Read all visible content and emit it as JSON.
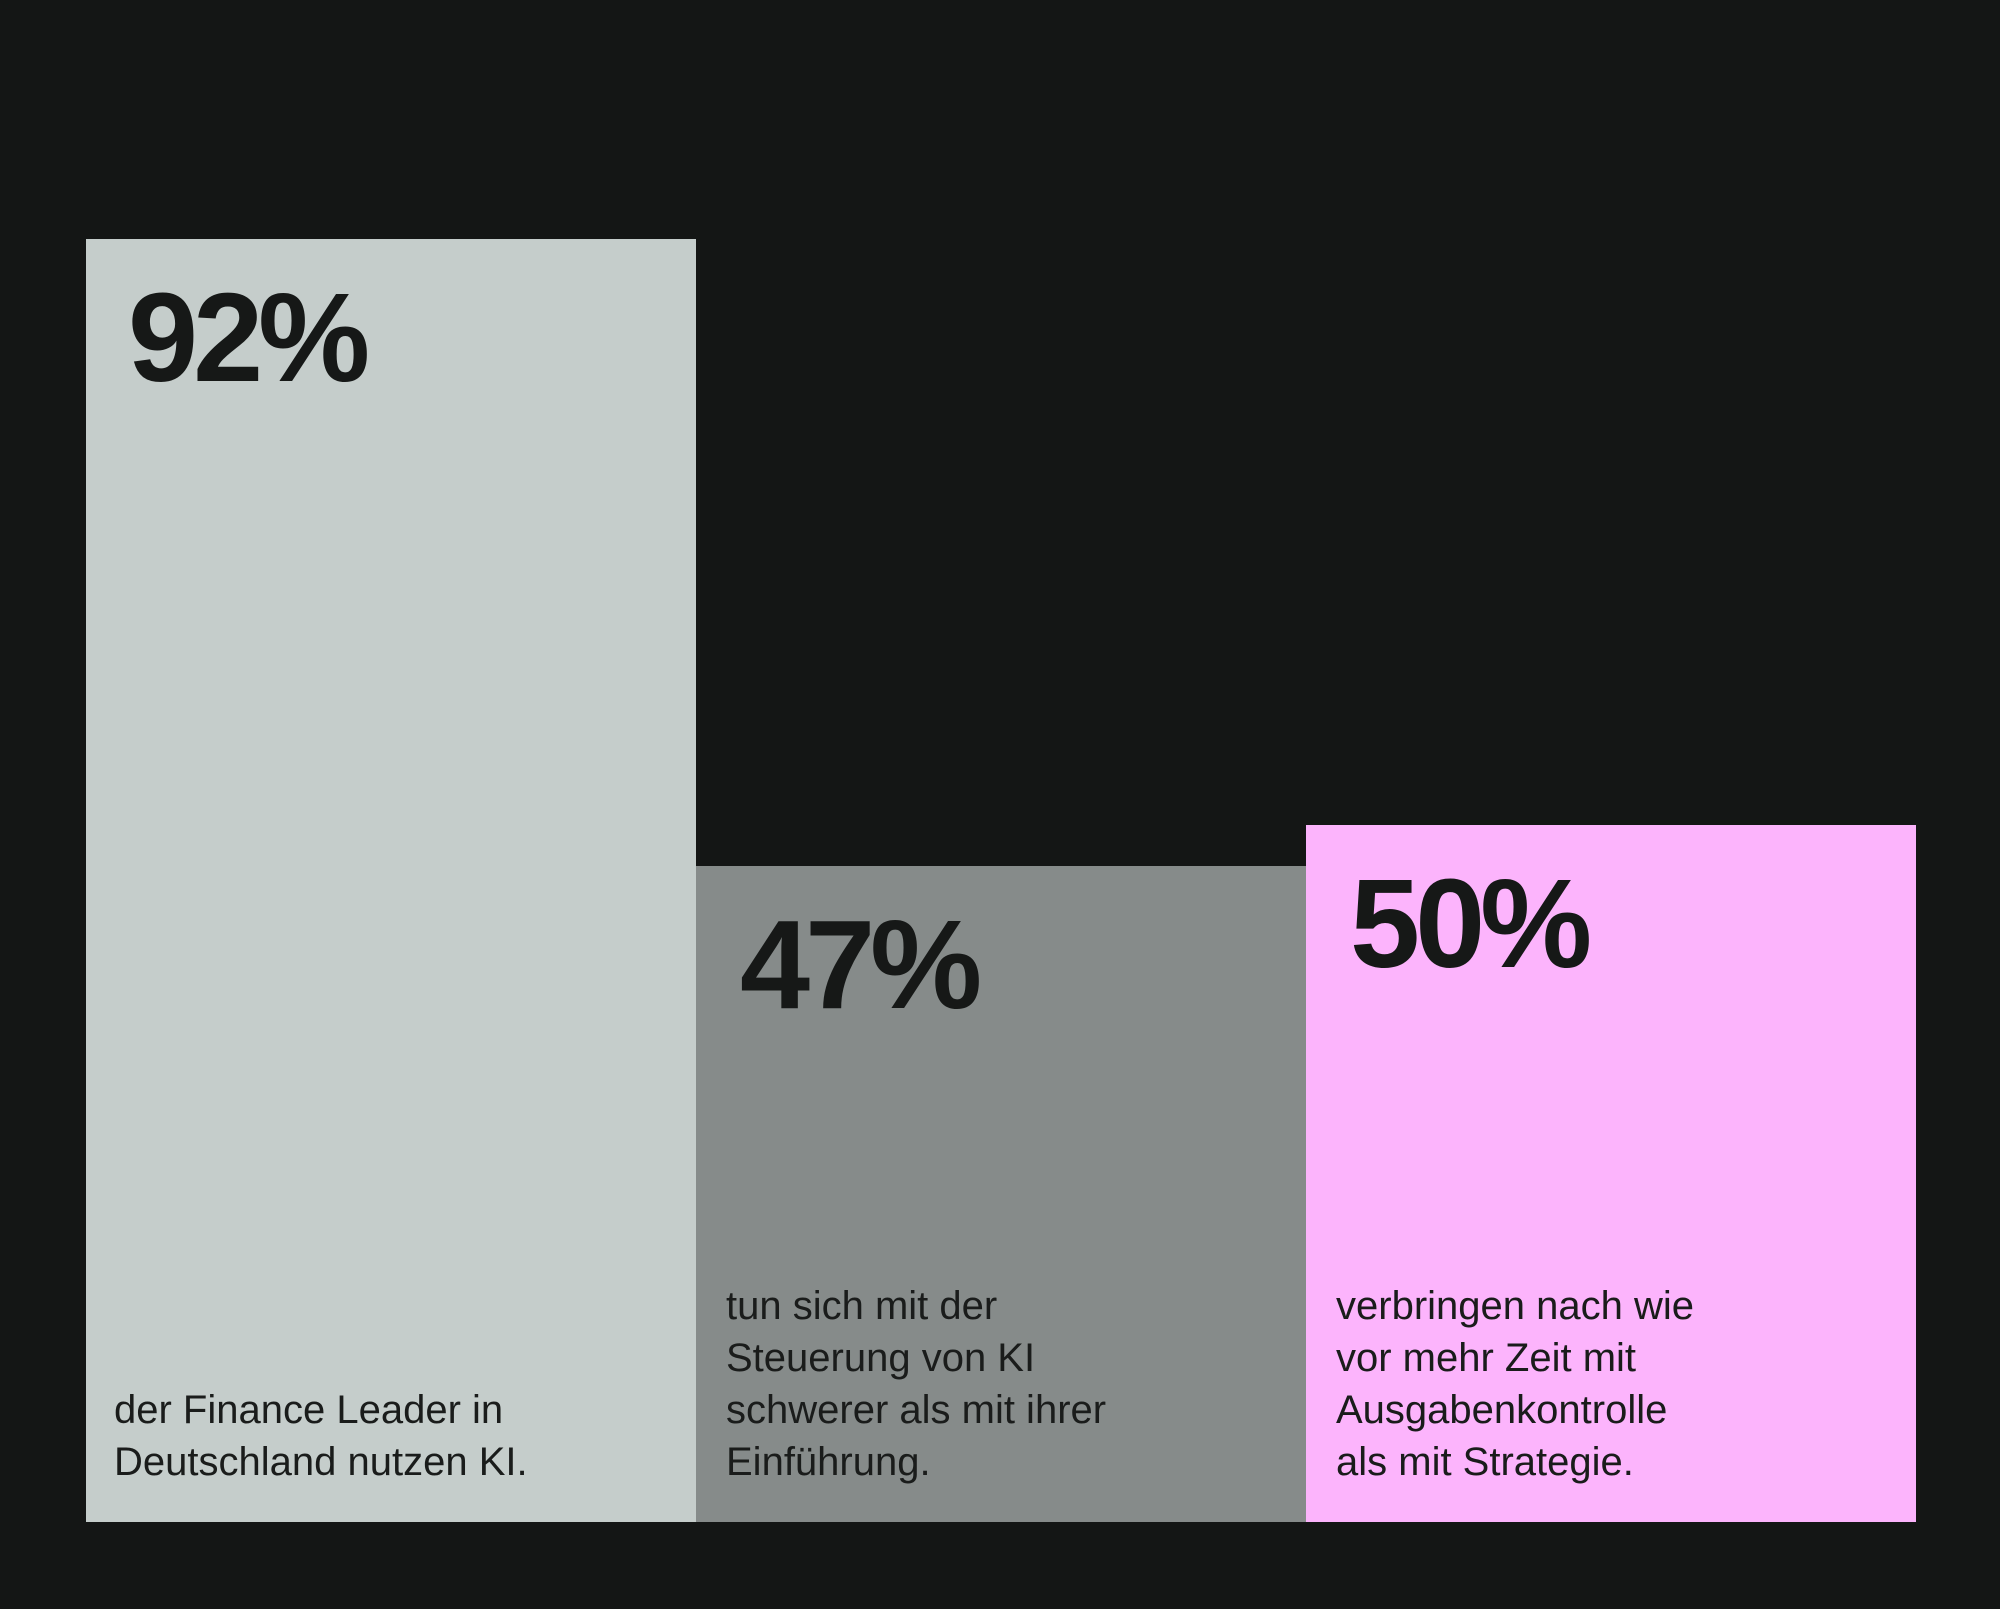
{
  "chart_data": {
    "type": "bar",
    "categories": [
      "bar-1",
      "bar-2",
      "bar-3"
    ],
    "values": [
      92,
      47,
      50
    ],
    "value_labels": [
      "92%",
      "47%",
      "50%"
    ],
    "descriptions": [
      "der Finance Leader in\nDeutschland nutzen KI.",
      "tun sich mit der\nSteuerung von KI\nschwerer als mit ihrer\nEinführung.",
      "verbringen nach wie\nvor mehr Zeit mit\nAusgabenkontrolle\nals mit Strategie."
    ],
    "colors": [
      "#c5cdcb",
      "#868b8a",
      "#fcb4fc"
    ],
    "ylim": [
      0,
      100
    ],
    "grid": false,
    "legend": "none",
    "background": "#141615",
    "text_color": "#161817"
  }
}
